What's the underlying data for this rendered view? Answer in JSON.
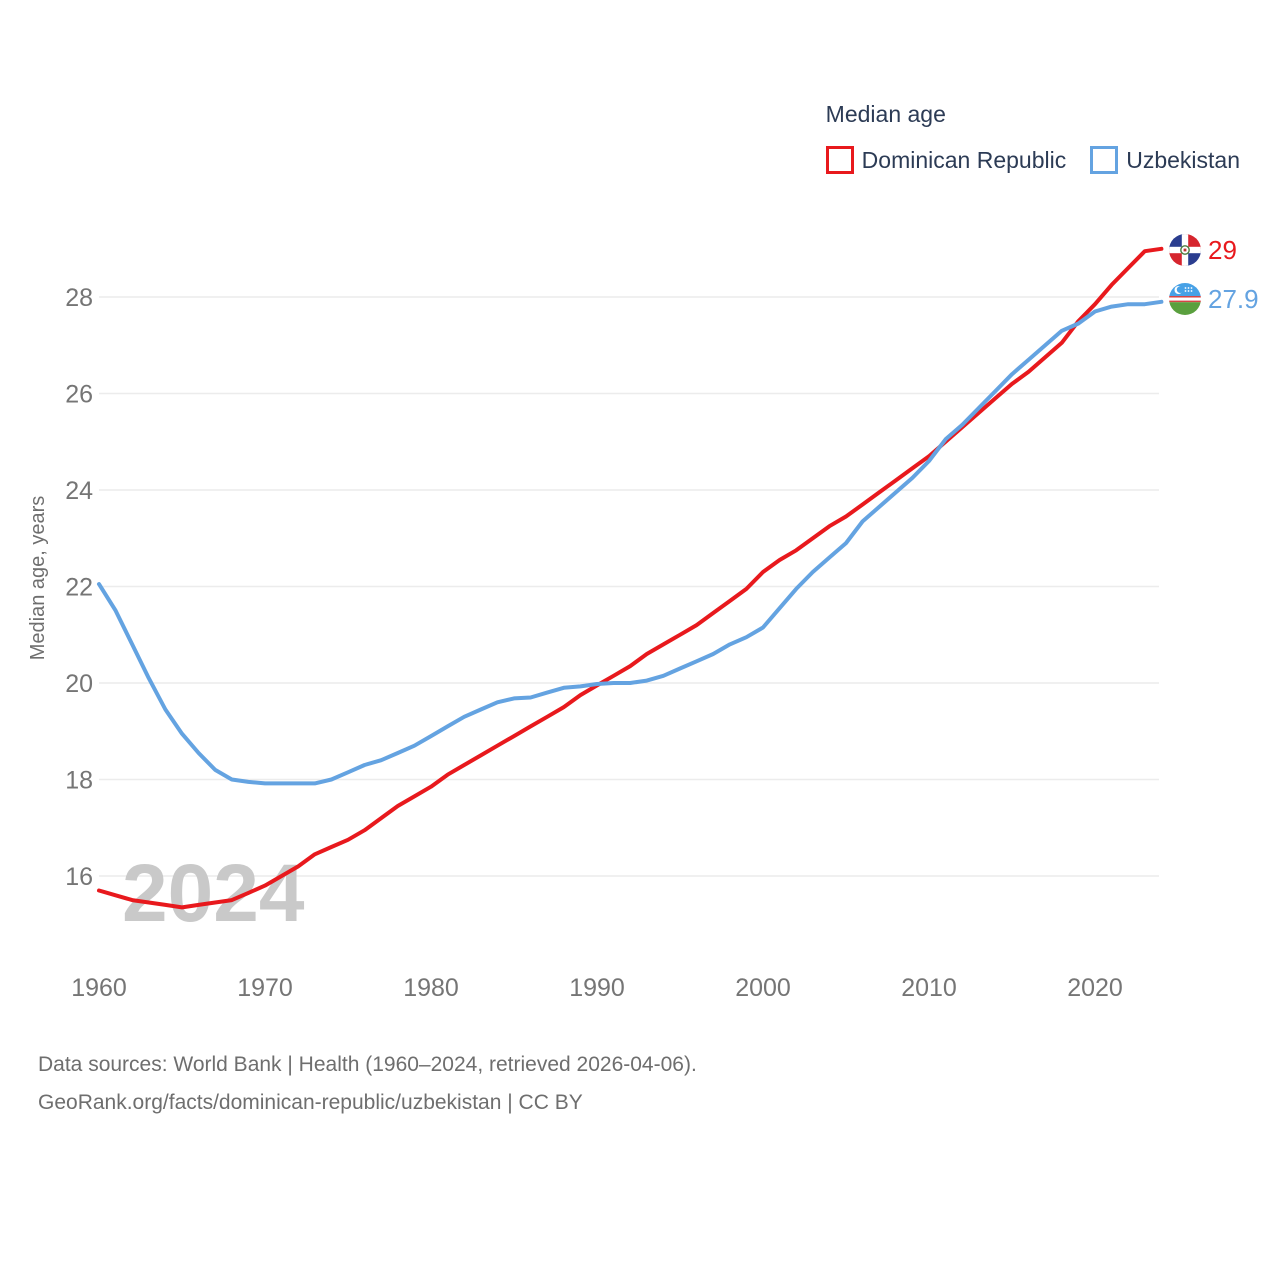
{
  "legend": {
    "title": "Median age",
    "items": [
      {
        "label": "Dominican Republic",
        "color": "#e8191d"
      },
      {
        "label": "Uzbekistan",
        "color": "#64a3e1"
      }
    ]
  },
  "end_labels": {
    "dominican_republic": "29",
    "uzbekistan": "27.9"
  },
  "watermark": "2024",
  "footer": {
    "line1": "Data sources: World Bank | Health (1960–2024, retrieved 2026-04-06).",
    "line2": "GeoRank.org/facts/dominican-republic/uzbekistan | CC BY"
  },
  "colors": {
    "red": "#e8191d",
    "blue": "#64a3e1",
    "grid": "#ececec",
    "tick": "#757575",
    "axis_title": "#6e6e6e",
    "watermark": "#c9c9c9",
    "legend_text": "#2c3b55",
    "footer_text": "#6e6e6e"
  },
  "chart_data": {
    "type": "line",
    "title": "Median age",
    "ylabel": "Median age, years",
    "xlabel": "",
    "ylim": [
      15,
      29.5
    ],
    "xlim": [
      1960,
      2024
    ],
    "yticks": [
      16,
      18,
      20,
      22,
      24,
      26,
      28
    ],
    "xticks": [
      1960,
      1970,
      1980,
      1990,
      2000,
      2010,
      2020
    ],
    "grid": "horizontal",
    "legend_position": "top-right",
    "x": [
      1960,
      1961,
      1962,
      1963,
      1964,
      1965,
      1966,
      1967,
      1968,
      1969,
      1970,
      1971,
      1972,
      1973,
      1974,
      1975,
      1976,
      1977,
      1978,
      1979,
      1980,
      1981,
      1982,
      1983,
      1984,
      1985,
      1986,
      1987,
      1988,
      1989,
      1990,
      1991,
      1992,
      1993,
      1994,
      1995,
      1996,
      1997,
      1998,
      1999,
      2000,
      2001,
      2002,
      2003,
      2004,
      2005,
      2006,
      2007,
      2008,
      2009,
      2010,
      2011,
      2012,
      2013,
      2014,
      2015,
      2016,
      2017,
      2018,
      2019,
      2020,
      2021,
      2022,
      2023,
      2024
    ],
    "series": [
      {
        "name": "Dominican Republic",
        "color": "#e8191d",
        "end_label": "29",
        "values": [
          15.7,
          15.6,
          15.5,
          15.45,
          15.4,
          15.35,
          15.4,
          15.45,
          15.5,
          15.65,
          15.8,
          16.0,
          16.2,
          16.45,
          16.6,
          16.75,
          16.95,
          17.2,
          17.45,
          17.65,
          17.85,
          18.1,
          18.3,
          18.5,
          18.7,
          18.9,
          19.1,
          19.3,
          19.5,
          19.75,
          19.95,
          20.15,
          20.35,
          20.6,
          20.8,
          21.0,
          21.2,
          21.45,
          21.7,
          21.95,
          22.3,
          22.55,
          22.75,
          23.0,
          23.25,
          23.45,
          23.7,
          23.95,
          24.2,
          24.45,
          24.7,
          25.0,
          25.3,
          25.6,
          25.9,
          26.2,
          26.45,
          26.75,
          27.05,
          27.5,
          27.85,
          28.25,
          28.6,
          28.95,
          29.0
        ]
      },
      {
        "name": "Uzbekistan",
        "color": "#64a3e1",
        "end_label": "27.9",
        "values": [
          22.05,
          21.5,
          20.8,
          20.1,
          19.45,
          18.95,
          18.55,
          18.2,
          18.0,
          17.95,
          17.92,
          17.92,
          17.92,
          17.92,
          18.0,
          18.15,
          18.3,
          18.4,
          18.55,
          18.7,
          18.9,
          19.1,
          19.3,
          19.45,
          19.6,
          19.68,
          19.7,
          19.8,
          19.9,
          19.93,
          19.98,
          20.0,
          20.0,
          20.05,
          20.15,
          20.3,
          20.45,
          20.6,
          20.8,
          20.95,
          21.15,
          21.55,
          21.95,
          22.3,
          22.6,
          22.9,
          23.35,
          23.65,
          23.95,
          24.25,
          24.6,
          25.05,
          25.35,
          25.7,
          26.05,
          26.4,
          26.7,
          27.0,
          27.3,
          27.45,
          27.7,
          27.8,
          27.85,
          27.85,
          27.9
        ]
      }
    ]
  }
}
